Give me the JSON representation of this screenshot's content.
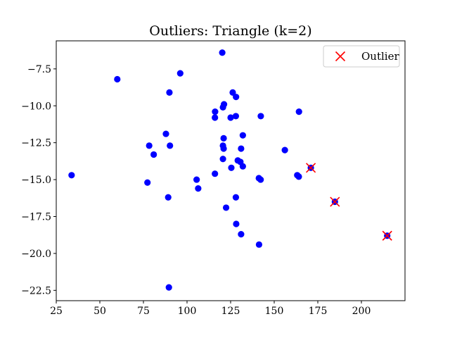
{
  "chart_data": {
    "type": "scatter",
    "title": "Outliers: Triangle (k=2)",
    "xlabel": "",
    "ylabel": "",
    "xlim": [
      25,
      225
    ],
    "ylim": [
      -23.2,
      -5.6
    ],
    "xticks": [
      25,
      50,
      75,
      100,
      125,
      150,
      175,
      200
    ],
    "yticks": [
      -22.5,
      -20.0,
      -17.5,
      -15.0,
      -12.5,
      -10.0,
      -7.5
    ],
    "grid": false,
    "legend": {
      "position": "top-right",
      "entries": [
        "Outlier"
      ]
    },
    "colors": {
      "points": "#0000ff",
      "outlier": "#ff0000"
    },
    "series": [
      {
        "marker": "circle",
        "color": "#0000ff",
        "points": [
          [
            120.2,
            -6.4
          ],
          [
            96.1,
            -7.8
          ],
          [
            60.0,
            -8.2
          ],
          [
            89.9,
            -9.1
          ],
          [
            126.2,
            -9.1
          ],
          [
            128.1,
            -9.4
          ],
          [
            121.2,
            -9.9
          ],
          [
            120.6,
            -10.1
          ],
          [
            116.1,
            -10.4
          ],
          [
            164.2,
            -10.4
          ],
          [
            116.0,
            -10.8
          ],
          [
            128.0,
            -10.7
          ],
          [
            125.0,
            -10.8
          ],
          [
            142.3,
            -10.7
          ],
          [
            87.9,
            -11.9
          ],
          [
            132.0,
            -12.0
          ],
          [
            121.0,
            -12.2
          ],
          [
            78.3,
            -12.7
          ],
          [
            90.2,
            -12.7
          ],
          [
            120.6,
            -12.7
          ],
          [
            121.0,
            -12.9
          ],
          [
            131.0,
            -12.9
          ],
          [
            156.1,
            -13.0
          ],
          [
            80.9,
            -13.3
          ],
          [
            120.6,
            -13.6
          ],
          [
            129.1,
            -13.7
          ],
          [
            130.6,
            -13.8
          ],
          [
            132.0,
            -14.1
          ],
          [
            125.4,
            -14.2
          ],
          [
            171.0,
            -14.2
          ],
          [
            116.0,
            -14.6
          ],
          [
            33.8,
            -14.7
          ],
          [
            163.2,
            -14.7
          ],
          [
            141.2,
            -14.9
          ],
          [
            142.2,
            -15.0
          ],
          [
            164.1,
            -14.8
          ],
          [
            105.5,
            -15.0
          ],
          [
            77.3,
            -15.2
          ],
          [
            106.4,
            -15.6
          ],
          [
            89.2,
            -16.2
          ],
          [
            128.0,
            -16.2
          ],
          [
            184.8,
            -16.5
          ],
          [
            122.4,
            -16.9
          ],
          [
            128.2,
            -18.0
          ],
          [
            131.0,
            -18.7
          ],
          [
            214.8,
            -18.8
          ],
          [
            141.3,
            -19.4
          ],
          [
            89.6,
            -22.3
          ]
        ]
      },
      {
        "name": "Outlier",
        "marker": "x",
        "color": "#ff0000",
        "points": [
          [
            171.0,
            -14.2
          ],
          [
            184.8,
            -16.5
          ],
          [
            214.8,
            -18.8
          ]
        ]
      }
    ]
  }
}
